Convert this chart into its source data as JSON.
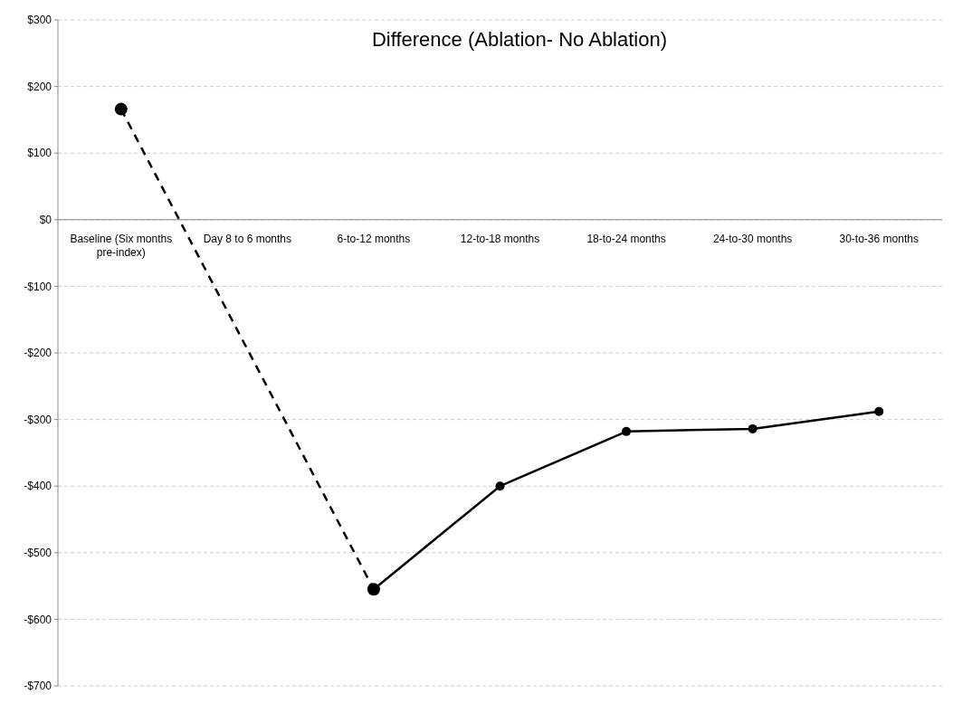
{
  "chart_data": {
    "type": "line",
    "title": "Difference (Ablation- No Ablation)",
    "categories": [
      "Baseline (Six months pre-index)",
      "Day 8 to 6 months",
      "6-to-12 months",
      "12-to-18 months",
      "18-to-24 months",
      "24-to-30 months",
      "30-to-36 months"
    ],
    "series": [
      {
        "color": "#000000",
        "x": [
          "Baseline (Six months pre-index)",
          "6-to-12 months"
        ],
        "values": [
          166,
          -555
        ],
        "line_style": "dashed"
      },
      {
        "color": "#000000",
        "values": [
          null,
          null,
          -555,
          -400,
          -318,
          -314,
          -288
        ],
        "line_style": "solid"
      }
    ],
    "ylim": [
      -700,
      300
    ],
    "yticks": [
      {
        "value": 300,
        "label": "$300"
      },
      {
        "value": 200,
        "label": "$200"
      },
      {
        "value": 100,
        "label": "$100"
      },
      {
        "value": 0,
        "label": "$0"
      },
      {
        "value": -100,
        "label": "-$100"
      },
      {
        "value": -200,
        "label": "-$200"
      },
      {
        "value": -300,
        "label": "-$300"
      },
      {
        "value": -400,
        "label": "-$400"
      },
      {
        "value": -500,
        "label": "-$500"
      },
      {
        "value": -600,
        "label": "-$600"
      },
      {
        "value": -700,
        "label": "-$700"
      }
    ],
    "grid": "y",
    "marker": "circle"
  }
}
